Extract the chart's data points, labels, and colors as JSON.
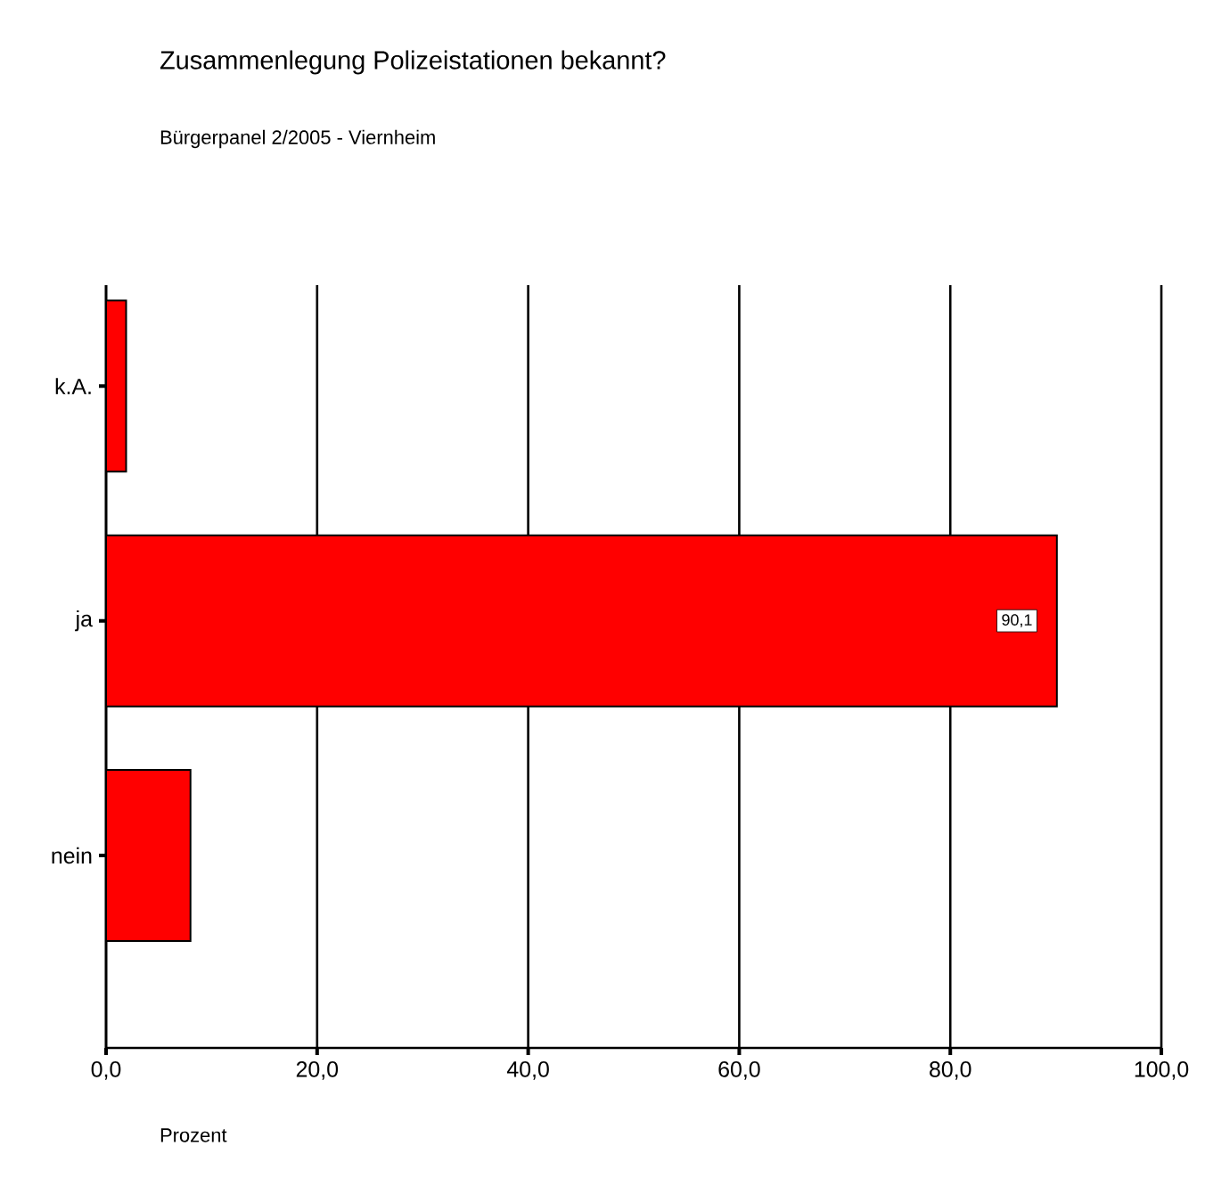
{
  "chart_data": {
    "type": "bar",
    "orientation": "horizontal",
    "title": "Zusammenlegung Polizeistationen bekannt?",
    "subtitle": "Bürgerpanel 2/2005 - Viernheim",
    "xlabel": "Prozent",
    "categories": [
      "k.A.",
      "ja",
      "nein"
    ],
    "values": [
      1.9,
      90.1,
      8.0
    ],
    "value_labels": [
      null,
      "90,1",
      null
    ],
    "color": "#ff0000",
    "xlim": [
      0,
      100
    ],
    "xticks": [
      {
        "value": 0,
        "label": "0,0"
      },
      {
        "value": 20,
        "label": "20,0"
      },
      {
        "value": 40,
        "label": "40,0"
      },
      {
        "value": 60,
        "label": "60,0"
      },
      {
        "value": 80,
        "label": "80,0"
      },
      {
        "value": 100,
        "label": "100,0"
      }
    ],
    "grid": "x"
  }
}
